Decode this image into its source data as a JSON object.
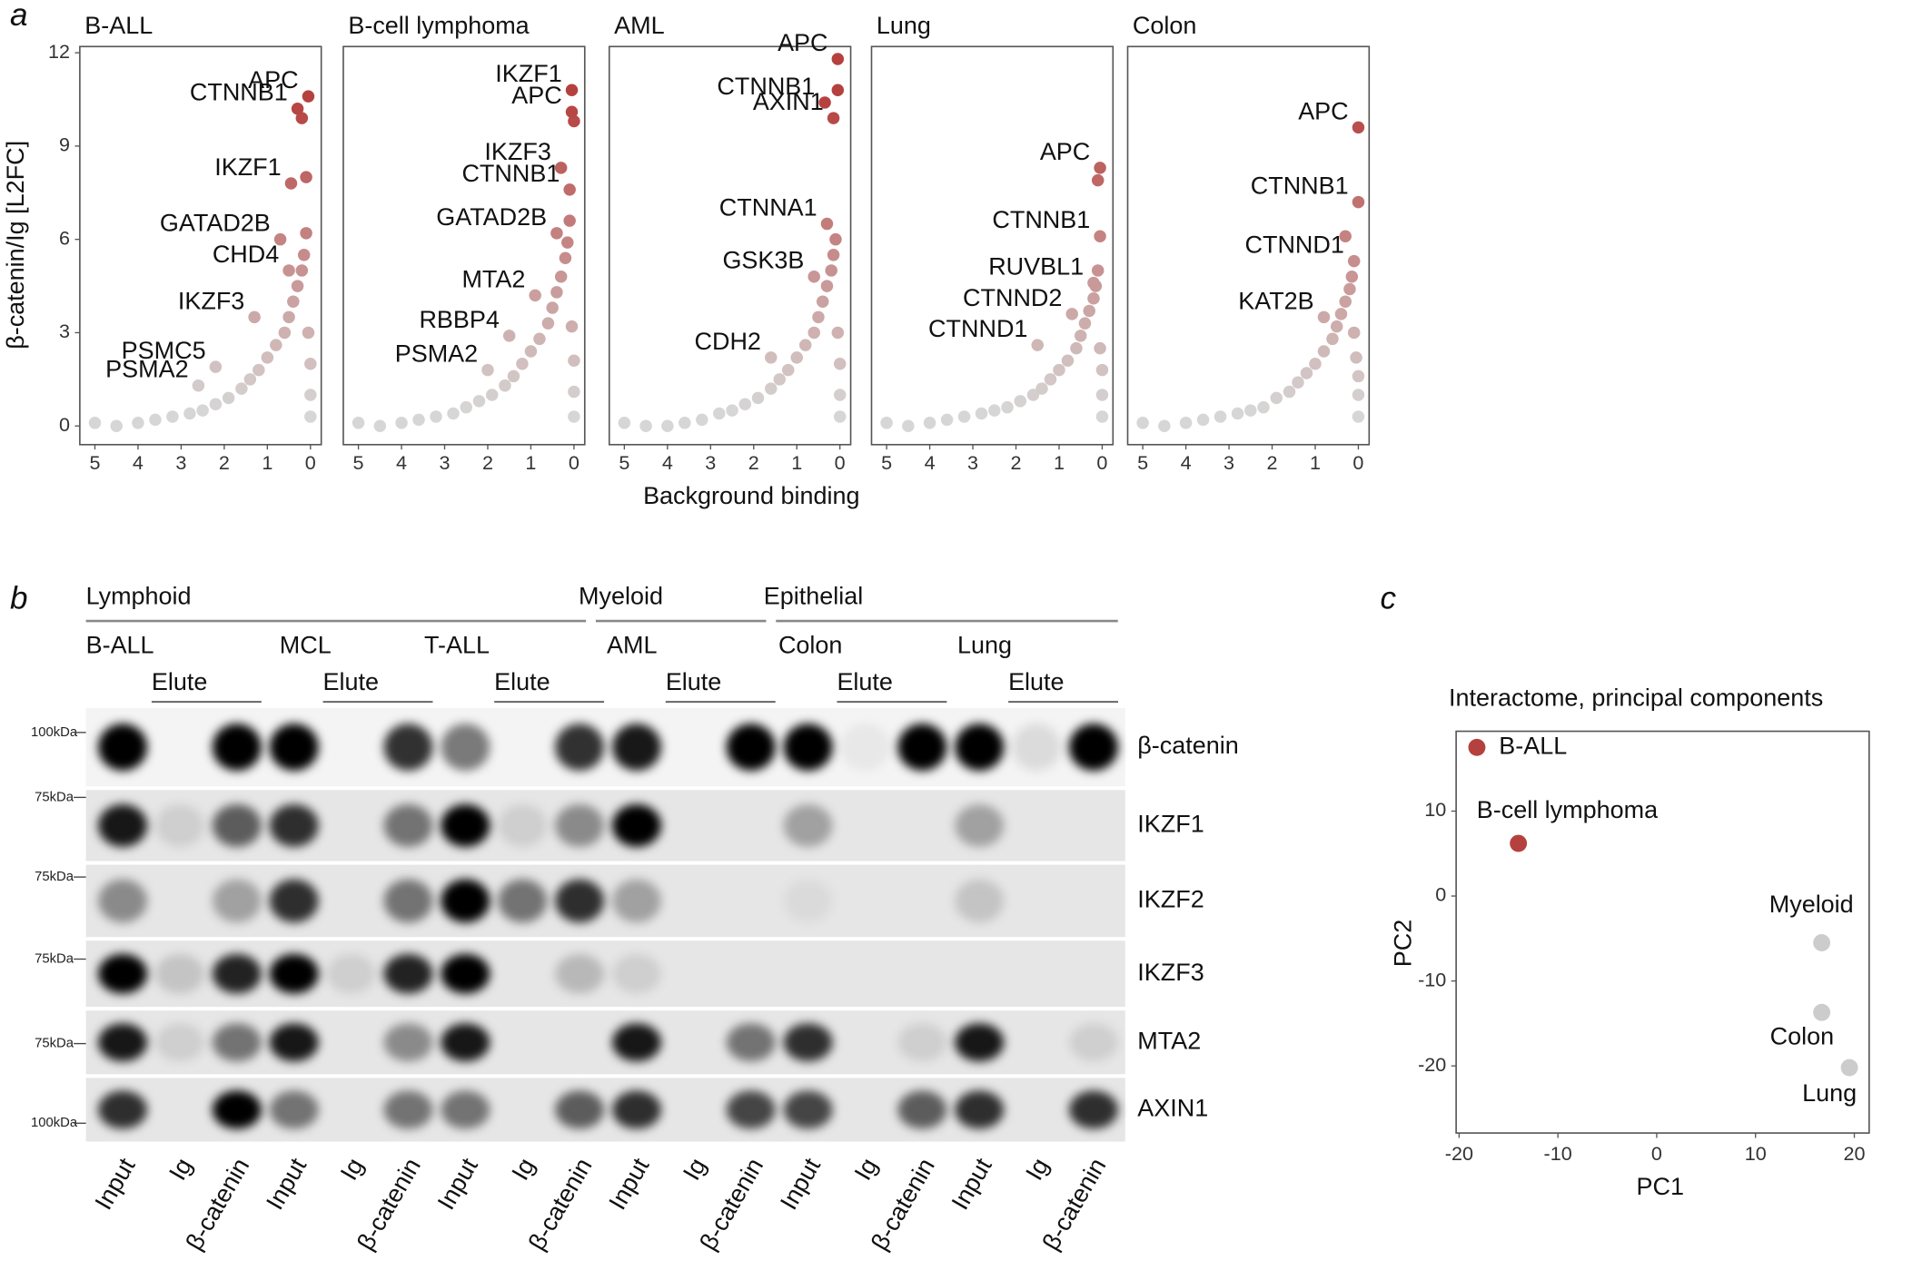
{
  "panel_labels": [
    "a",
    "b",
    "c"
  ],
  "panel_a": {
    "xlabel": "Background binding",
    "ylabel": "β-catenin/Ig  [L2FC]",
    "color_low": "#d6d6d6",
    "color_high": "#b5413f"
  },
  "chart_data": [
    {
      "type": "scatter",
      "title": "B-ALL",
      "xlim": [
        5.35,
        -0.25
      ],
      "ylim": [
        -0.6,
        12.2
      ],
      "xticks": [
        5,
        4,
        3,
        2,
        1,
        0
      ],
      "yticks": [
        0,
        3,
        6,
        9,
        12
      ],
      "genes": {
        "labels": [
          "APC",
          "CTNNB1",
          "IKZF1",
          "GATAD2B",
          "CHD4",
          "IKZF3",
          "PSMC5",
          "PSMA2"
        ],
        "x": [
          0.05,
          0.3,
          0.45,
          0.7,
          0.5,
          1.3,
          2.2,
          2.6
        ],
        "y": [
          10.6,
          10.2,
          7.8,
          6.0,
          5.0,
          3.5,
          1.9,
          1.3
        ]
      },
      "x": [
        5.0,
        4.5,
        4.0,
        3.6,
        3.2,
        2.8,
        2.5,
        2.2,
        1.9,
        1.6,
        1.4,
        1.2,
        1.0,
        0.8,
        0.6,
        0.5,
        0.4,
        0.3,
        0.2,
        0.15,
        0.1,
        0.05,
        0.0,
        0.0,
        0.0,
        0.1,
        0.2
      ],
      "y": [
        0.1,
        0.0,
        0.1,
        0.2,
        0.3,
        0.4,
        0.5,
        0.7,
        0.9,
        1.2,
        1.5,
        1.8,
        2.2,
        2.6,
        3.0,
        3.5,
        4.0,
        4.5,
        5.0,
        5.5,
        6.2,
        3.0,
        2.0,
        1.0,
        0.3,
        8.0,
        9.9
      ]
    },
    {
      "type": "scatter",
      "title": "B-cell lymphoma",
      "xlim": [
        5.35,
        -0.25
      ],
      "ylim": [
        -0.6,
        12.2
      ],
      "xticks": [
        5,
        4,
        3,
        2,
        1,
        0
      ],
      "yticks": [
        0,
        3,
        6,
        9,
        12
      ],
      "genes": {
        "labels": [
          "IKZF1",
          "APC",
          "IKZF3",
          "CTNNB1",
          "GATAD2B",
          "MTA2",
          "RBBP4",
          "PSMA2"
        ],
        "x": [
          0.05,
          0.05,
          0.3,
          0.1,
          0.4,
          0.9,
          1.5,
          2.0
        ],
        "y": [
          10.8,
          10.1,
          8.3,
          7.6,
          6.2,
          4.2,
          2.9,
          1.8
        ]
      },
      "x": [
        5.0,
        4.5,
        4.0,
        3.6,
        3.2,
        2.8,
        2.5,
        2.2,
        1.9,
        1.6,
        1.4,
        1.2,
        1.0,
        0.8,
        0.6,
        0.5,
        0.4,
        0.3,
        0.2,
        0.15,
        0.1,
        0.05,
        0.0,
        0.0,
        0.0,
        0.0
      ],
      "y": [
        0.1,
        0.0,
        0.1,
        0.2,
        0.3,
        0.4,
        0.6,
        0.8,
        1.0,
        1.3,
        1.6,
        2.0,
        2.4,
        2.8,
        3.3,
        3.8,
        4.3,
        4.8,
        5.4,
        5.9,
        6.6,
        3.2,
        2.1,
        1.1,
        0.3,
        9.8
      ]
    },
    {
      "type": "scatter",
      "title": "AML",
      "xlim": [
        5.35,
        -0.25
      ],
      "ylim": [
        -0.6,
        12.2
      ],
      "xticks": [
        5,
        4,
        3,
        2,
        1,
        0
      ],
      "yticks": [
        0,
        3,
        6,
        9,
        12
      ],
      "genes": {
        "labels": [
          "APC",
          "CTNNB1",
          "AXIN1",
          "CTNNA1",
          "GSK3B",
          "CDH2"
        ],
        "x": [
          0.05,
          0.35,
          0.15,
          0.3,
          0.6,
          1.6
        ],
        "y": [
          11.8,
          10.4,
          9.9,
          6.5,
          4.8,
          2.2
        ]
      },
      "x": [
        5.0,
        4.5,
        4.0,
        3.6,
        3.2,
        2.8,
        2.5,
        2.2,
        1.9,
        1.6,
        1.4,
        1.2,
        1.0,
        0.8,
        0.6,
        0.5,
        0.4,
        0.3,
        0.2,
        0.15,
        0.1,
        0.05,
        0.0,
        0.0,
        0.0,
        0.05
      ],
      "y": [
        0.1,
        0.0,
        0.0,
        0.1,
        0.2,
        0.4,
        0.5,
        0.7,
        0.9,
        1.2,
        1.5,
        1.8,
        2.2,
        2.6,
        3.0,
        3.5,
        4.0,
        4.5,
        5.0,
        5.5,
        6.0,
        3.0,
        2.0,
        1.0,
        0.3,
        10.8
      ]
    },
    {
      "type": "scatter",
      "title": "Lung",
      "xlim": [
        5.35,
        -0.25
      ],
      "ylim": [
        -0.6,
        12.2
      ],
      "xticks": [
        5,
        4,
        3,
        2,
        1,
        0
      ],
      "yticks": [
        0,
        3,
        6,
        9,
        12
      ],
      "genes": {
        "labels": [
          "APC",
          "CTNNB1",
          "RUVBL1",
          "CTNND2",
          "CTNND1"
        ],
        "x": [
          0.05,
          0.05,
          0.2,
          0.7,
          1.5
        ],
        "y": [
          8.3,
          6.1,
          4.6,
          3.6,
          2.6
        ]
      },
      "x": [
        5.0,
        4.5,
        4.0,
        3.6,
        3.2,
        2.8,
        2.5,
        2.2,
        1.9,
        1.6,
        1.4,
        1.2,
        1.0,
        0.8,
        0.6,
        0.5,
        0.4,
        0.3,
        0.2,
        0.15,
        0.1,
        0.05,
        0.0,
        0.0,
        0.0,
        0.1
      ],
      "y": [
        0.1,
        0.0,
        0.1,
        0.2,
        0.3,
        0.4,
        0.5,
        0.6,
        0.8,
        1.0,
        1.2,
        1.5,
        1.8,
        2.1,
        2.5,
        2.9,
        3.3,
        3.7,
        4.1,
        4.5,
        5.0,
        2.5,
        1.8,
        1.0,
        0.3,
        7.9
      ]
    },
    {
      "type": "scatter",
      "title": "Colon",
      "xlim": [
        5.35,
        -0.25
      ],
      "ylim": [
        -0.6,
        12.2
      ],
      "xticks": [
        5,
        4,
        3,
        2,
        1,
        0
      ],
      "yticks": [
        0,
        3,
        6,
        9,
        12
      ],
      "genes": {
        "labels": [
          "APC",
          "CTNNB1",
          "CTNND1",
          "KAT2B"
        ],
        "x": [
          0.0,
          0.0,
          0.1,
          0.8
        ],
        "y": [
          9.6,
          7.2,
          5.3,
          3.5
        ]
      },
      "x": [
        5.0,
        4.5,
        4.0,
        3.6,
        3.2,
        2.8,
        2.5,
        2.2,
        1.9,
        1.6,
        1.4,
        1.2,
        1.0,
        0.8,
        0.6,
        0.5,
        0.4,
        0.3,
        0.2,
        0.15,
        0.1,
        0.05,
        0.0,
        0.0,
        0.0,
        0.3
      ],
      "y": [
        0.1,
        0.0,
        0.1,
        0.2,
        0.3,
        0.4,
        0.5,
        0.6,
        0.9,
        1.1,
        1.4,
        1.7,
        2.0,
        2.4,
        2.8,
        3.2,
        3.6,
        4.0,
        4.4,
        4.8,
        3.0,
        2.2,
        1.6,
        1.0,
        0.3,
        6.1
      ]
    },
    {
      "type": "scatter",
      "title": "Interactome, principal components",
      "xlabel": "PC1",
      "ylabel": "PC2",
      "xlim": [
        -20.3,
        21.5
      ],
      "ylim": [
        -27.9,
        19.4
      ],
      "xticks": [
        -20,
        -10,
        0,
        10,
        20
      ],
      "yticks": [
        -20,
        -10,
        0,
        10
      ],
      "x": [
        -18.2,
        -14.0,
        16.7,
        16.7,
        19.5
      ],
      "y": [
        17.5,
        6.2,
        -5.5,
        -13.7,
        -20.2
      ],
      "point_labels": [
        "B-ALL",
        "B-cell lymphoma",
        "Myeloid",
        "Colon",
        "Lung"
      ],
      "colors": [
        "#b5413f",
        "#b5413f",
        "#cccccc",
        "#cccccc",
        "#cccccc"
      ]
    }
  ],
  "blot": {
    "groups": [
      "Lymphoid",
      "Myeloid",
      "Epithelial"
    ],
    "cell_lines": [
      "B-ALL",
      "MCL",
      "T-ALL",
      "AML",
      "Colon",
      "Lung"
    ],
    "elute": "Elute",
    "lanes": [
      "Input",
      "Ig",
      "β-catenin"
    ],
    "proteins": [
      {
        "name": "β-catenin",
        "marker": "100kDa"
      },
      {
        "name": "IKZF1",
        "marker": "75kDa"
      },
      {
        "name": "IKZF2",
        "marker": "75kDa"
      },
      {
        "name": "IKZF3",
        "marker": "75kDa"
      },
      {
        "name": "MTA2",
        "marker": "75kDa"
      },
      {
        "name": "AXIN1",
        "marker": "100kDa"
      }
    ]
  }
}
